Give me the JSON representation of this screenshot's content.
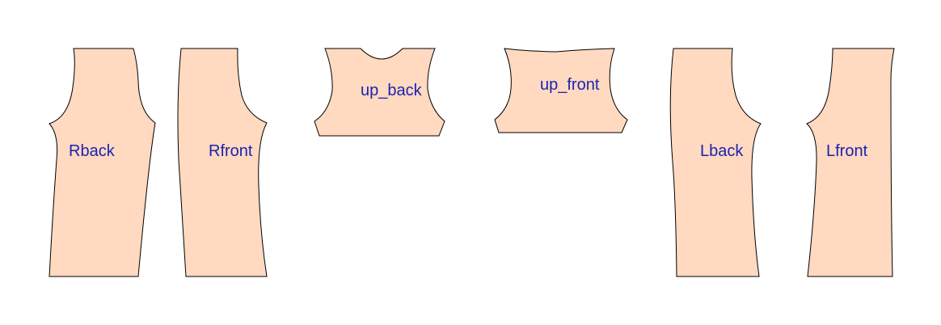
{
  "colors": {
    "background": "#ffffff",
    "piece_fill": "#ffd9c0",
    "outline": "#000000",
    "label": "#1a24b0"
  },
  "pieces": [
    {
      "id": "rback",
      "label": "Rback"
    },
    {
      "id": "rfront",
      "label": "Rfront"
    },
    {
      "id": "up-back",
      "label": "up_back"
    },
    {
      "id": "up-front",
      "label": "up_front"
    },
    {
      "id": "lback",
      "label": "Lback"
    },
    {
      "id": "lfront",
      "label": "Lfront"
    }
  ]
}
